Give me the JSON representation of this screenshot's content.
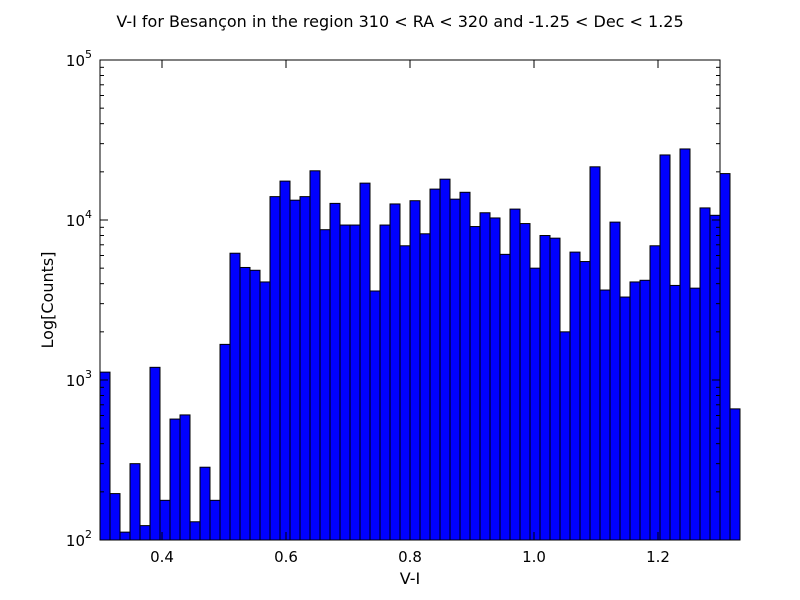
{
  "chart_data": {
    "type": "bar",
    "title": "V-I for Besançon in the region 310 < RA < 320 and -1.25 < Dec < 1.25",
    "xlabel": "V-I",
    "ylabel": "Log[Counts]",
    "xlim": [
      0.3,
      1.3
    ],
    "ylim": [
      100,
      100000
    ],
    "y_scale": "log",
    "x_ticks": [
      {
        "value": 0.4,
        "label": "0.4"
      },
      {
        "value": 0.6,
        "label": "0.6"
      },
      {
        "value": 0.8,
        "label": "0.8"
      },
      {
        "value": 1.0,
        "label": "1.0"
      },
      {
        "value": 1.2,
        "label": "1.2"
      }
    ],
    "y_ticks": [
      {
        "value": 100,
        "base": "10",
        "exp": "2"
      },
      {
        "value": 1000,
        "base": "10",
        "exp": "3"
      },
      {
        "value": 10000,
        "base": "10",
        "exp": "4"
      },
      {
        "value": 100000,
        "base": "10",
        "exp": "5"
      }
    ],
    "bin_width": 0.01612903,
    "counts": [
      1120,
      195,
      112,
      300,
      123,
      1200,
      177,
      570,
      605,
      130,
      285,
      177,
      1670,
      6200,
      5050,
      4850,
      4100,
      14000,
      17500,
      13300,
      14000,
      20300,
      8700,
      12700,
      9300,
      9300,
      17000,
      3600,
      9300,
      12600,
      6900,
      13200,
      8200,
      15600,
      18000,
      13500,
      14900,
      9100,
      11100,
      10300,
      6100,
      11700,
      9500,
      5000,
      8000,
      7700,
      2000,
      6300,
      5500,
      21500,
      3650,
      9700,
      3300,
      4100,
      4200,
      6900,
      25500,
      3900,
      27800,
      3750,
      11900,
      10700,
      19500,
      660
    ],
    "bar_color": "#0000ff",
    "edge_color": "#000000",
    "grid": false
  }
}
